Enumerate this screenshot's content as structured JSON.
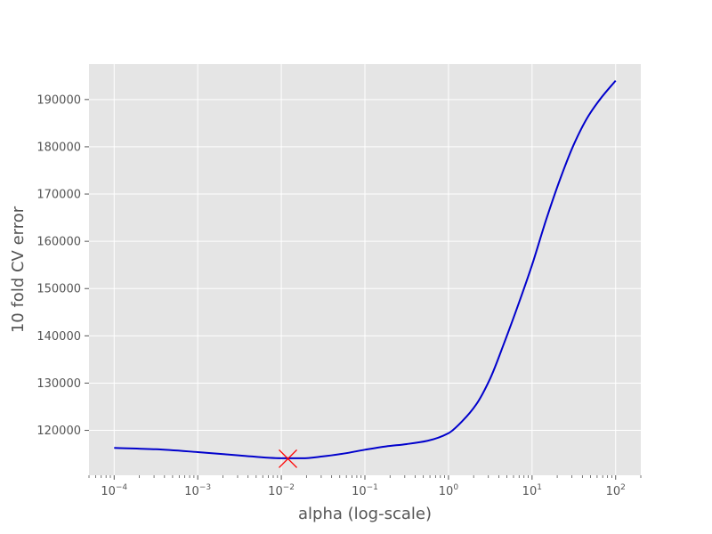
{
  "chart_data": {
    "type": "line",
    "title": "",
    "xlabel": "alpha (log-scale)",
    "ylabel": "10 fold CV error",
    "xscale": "log",
    "xlim": [
      5e-05,
      200
    ],
    "ylim": [
      110500,
      197500
    ],
    "grid": true,
    "legend": "none",
    "colors": {
      "background": "#e5e5e5",
      "grid": "#ffffff",
      "line": "#0000cc",
      "marker": "#ff0000"
    },
    "x_ticks": [
      {
        "value": 0.0001,
        "base": "10",
        "exp": "−4"
      },
      {
        "value": 0.001,
        "base": "10",
        "exp": "−3"
      },
      {
        "value": 0.01,
        "base": "10",
        "exp": "−2"
      },
      {
        "value": 0.1,
        "base": "10",
        "exp": "−1"
      },
      {
        "value": 1,
        "base": "10",
        "exp": "0"
      },
      {
        "value": 10,
        "base": "10",
        "exp": "1"
      },
      {
        "value": 100,
        "base": "10",
        "exp": "2"
      }
    ],
    "y_ticks": [
      {
        "value": 120000,
        "label": "120000"
      },
      {
        "value": 130000,
        "label": "130000"
      },
      {
        "value": 140000,
        "label": "140000"
      },
      {
        "value": 150000,
        "label": "150000"
      },
      {
        "value": 160000,
        "label": "160000"
      },
      {
        "value": 170000,
        "label": "170000"
      },
      {
        "value": 180000,
        "label": "180000"
      },
      {
        "value": 190000,
        "label": "190000"
      }
    ],
    "series": [
      {
        "x": [
          0.0001,
          0.000316,
          0.001,
          0.00316,
          0.01,
          0.0178,
          0.0316,
          0.0562,
          0.1,
          0.178,
          0.316,
          0.562,
          1,
          1.47,
          2.15,
          3.16,
          4.64,
          6.81,
          10,
          14.7,
          21.5,
          31.6,
          46.4,
          68.1,
          100
        ],
        "values": [
          116300,
          116000,
          115400,
          114700,
          114100,
          114100,
          114500,
          115100,
          115900,
          116600,
          117100,
          117800,
          119400,
          122000,
          125500,
          131000,
          138500,
          146500,
          155000,
          164500,
          173000,
          180500,
          186300,
          190500,
          194000
        ]
      }
    ],
    "marker": {
      "x": 0.012,
      "y": 114000,
      "symbol": "x"
    }
  }
}
